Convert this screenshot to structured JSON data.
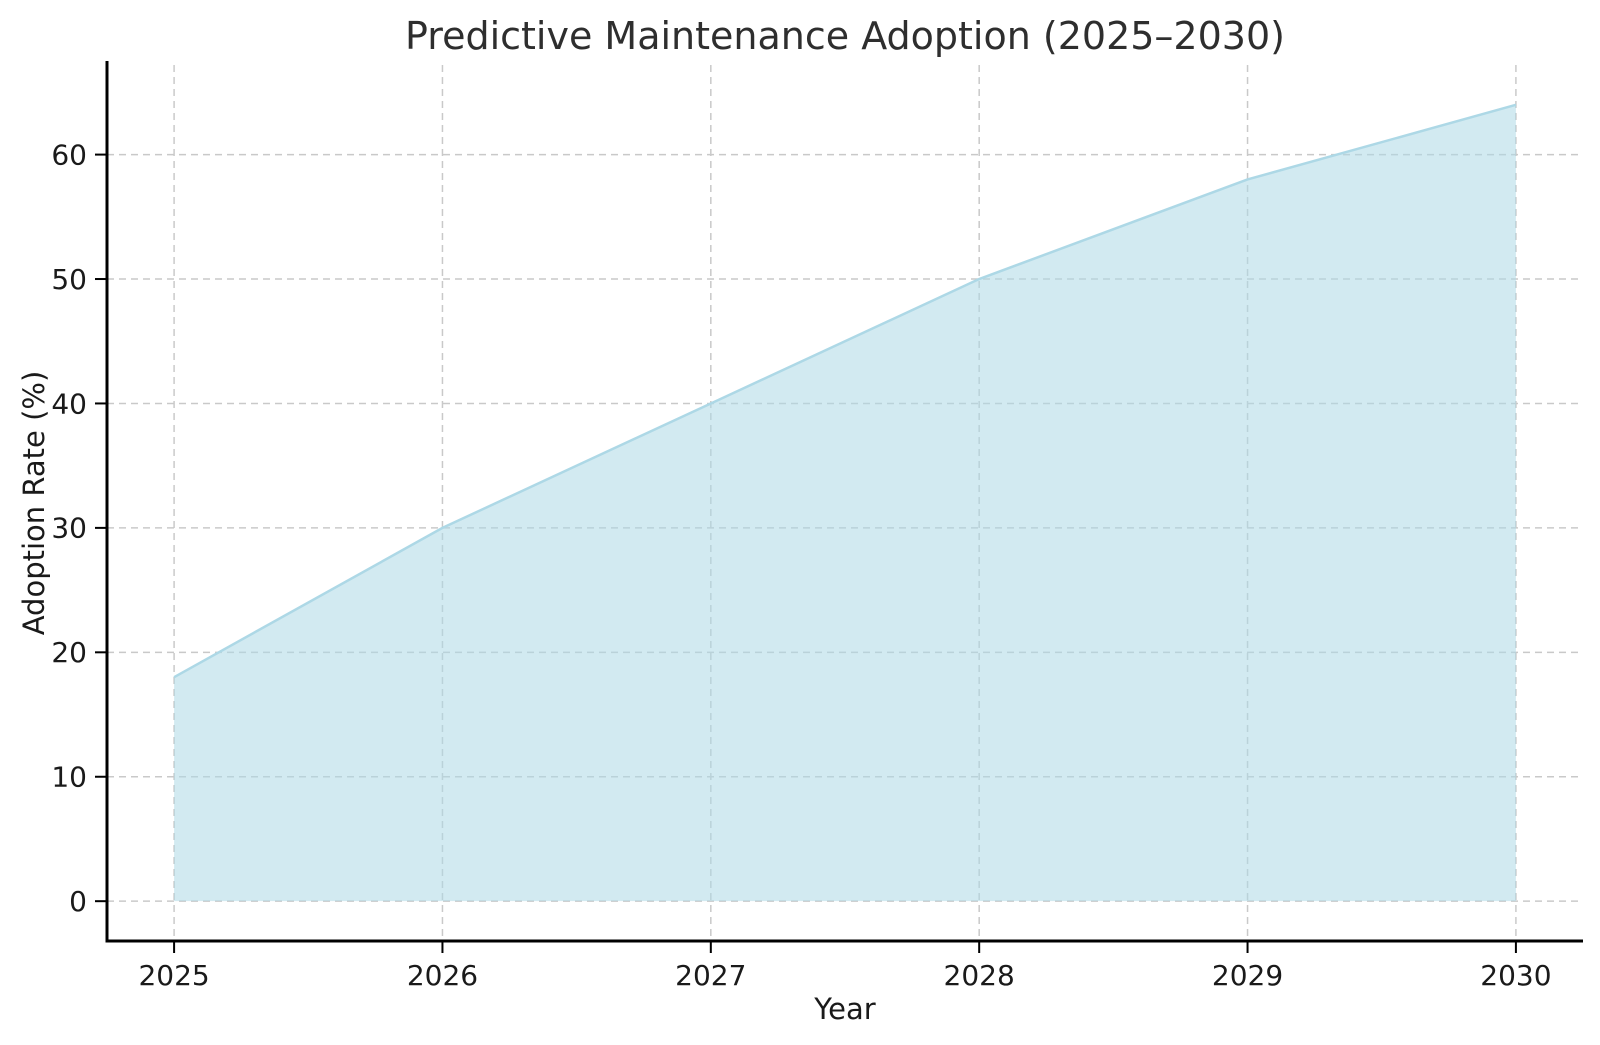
{
  "chart_data": {
    "type": "area",
    "title": "Predictive Maintenance Adoption (2025–2030)",
    "xlabel": "Year",
    "ylabel": "Adoption Rate (%)",
    "x": [
      2025,
      2026,
      2027,
      2028,
      2029,
      2030
    ],
    "series": [
      {
        "name": "Adoption Rate (%)",
        "values": [
          18,
          30,
          40,
          50,
          58,
          64
        ]
      }
    ],
    "xticks": [
      "2025",
      "2026",
      "2027",
      "2028",
      "2029",
      "2030"
    ],
    "yticks": [
      "0",
      "10",
      "20",
      "30",
      "40",
      "50",
      "60"
    ],
    "xlim": [
      2024.75,
      2030.25
    ],
    "ylim": [
      -3.2,
      67.2
    ],
    "grid": true,
    "grid_style": "dashed",
    "legend": "none",
    "baseline": 0,
    "colors": {
      "fill": "#add8e6",
      "fill_opacity": 0.55,
      "line": "#add8e6",
      "grid": "#c9c9c9",
      "spine": "#000000",
      "tick_text": "#1a1a1a",
      "title_text": "#2e2e2e",
      "background": "#ffffff"
    }
  }
}
